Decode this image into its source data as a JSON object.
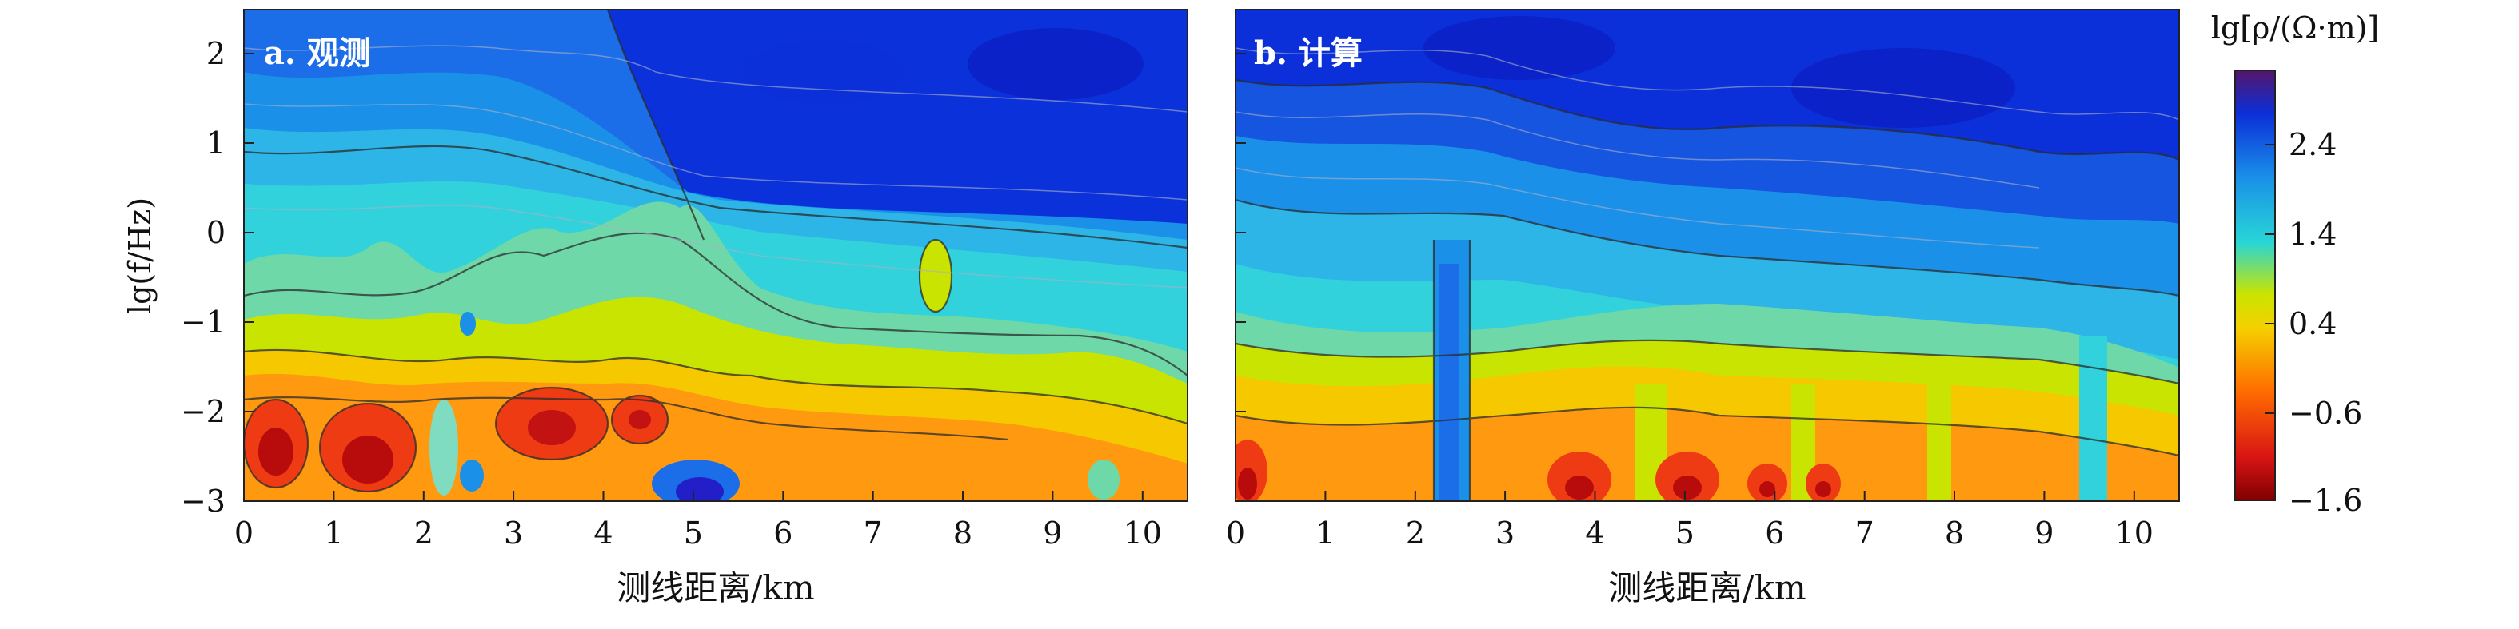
{
  "chart_data": [
    {
      "type": "heatmap",
      "panel": "a. 观测",
      "xlabel": "测线距离/km",
      "ylabel": "lg(f/Hz)",
      "xlim": [
        0,
        10.5
      ],
      "ylim": [
        -3,
        2.5
      ],
      "xticks": [
        "0",
        "1",
        "2",
        "3",
        "4",
        "5",
        "6",
        "7",
        "8",
        "9",
        "10"
      ],
      "yticks": [
        "−3",
        "−2",
        "−1",
        "0",
        "1",
        "2"
      ],
      "z_label": "lg[ρ/(Ω·m)]",
      "contour_lines": true,
      "features": [
        {
          "x": 0.4,
          "y": -2.4,
          "value": -1.4
        },
        {
          "x": 1.4,
          "y": -2.5,
          "value": -1.5
        },
        {
          "x": 3.5,
          "y": -2.2,
          "value": -1.2
        },
        {
          "x": 4.5,
          "y": -2.1,
          "value": -1.0
        },
        {
          "x": 5.2,
          "y": -2.9,
          "value": 2.8
        },
        {
          "x": 2.6,
          "y": -2.8,
          "value": 1.6
        },
        {
          "x": 7.8,
          "y": -0.5,
          "value": 0.6
        },
        {
          "x": 4.8,
          "y": 0.4,
          "value": 1.0
        },
        {
          "x": 8.0,
          "y": 2.0,
          "value": 2.6
        }
      ]
    },
    {
      "type": "heatmap",
      "panel": "b. 计算",
      "xlabel": "测线距离/km",
      "ylabel": "",
      "xlim": [
        0,
        10.5
      ],
      "ylim": [
        -3,
        2.5
      ],
      "xticks": [
        "0",
        "1",
        "2",
        "3",
        "4",
        "5",
        "6",
        "7",
        "8",
        "9",
        "10"
      ],
      "z_label": "lg[ρ/(Ω·m)]",
      "contour_lines": true,
      "features": [
        {
          "x": 0.2,
          "y": -2.7,
          "value": -1.5
        },
        {
          "x": 3.8,
          "y": -2.8,
          "value": -1.5
        },
        {
          "x": 5.1,
          "y": -2.8,
          "value": -1.6
        },
        {
          "x": 6.1,
          "y": -2.9,
          "value": -1.3
        },
        {
          "x": 6.7,
          "y": -2.9,
          "value": -1.2
        },
        {
          "x": 2.5,
          "y": -2.0,
          "value": 2.0
        },
        {
          "x": 9.6,
          "y": -2.0,
          "value": 1.6
        },
        {
          "x": 7.0,
          "y": 2.0,
          "value": 3.0
        }
      ]
    }
  ],
  "colorbar": {
    "label": "lg[ρ/(Ω·m)]",
    "ticks": [
      "2.4",
      "1.4",
      "0.4",
      "−0.6",
      "−1.6"
    ],
    "range": [
      -1.6,
      3.2
    ],
    "colors": [
      "#7f0000",
      "#d81414",
      "#ff6a00",
      "#f5d000",
      "#c9e400",
      "#28d6d6",
      "#1a90e8",
      "#0b2fd8",
      "#55156b"
    ]
  }
}
